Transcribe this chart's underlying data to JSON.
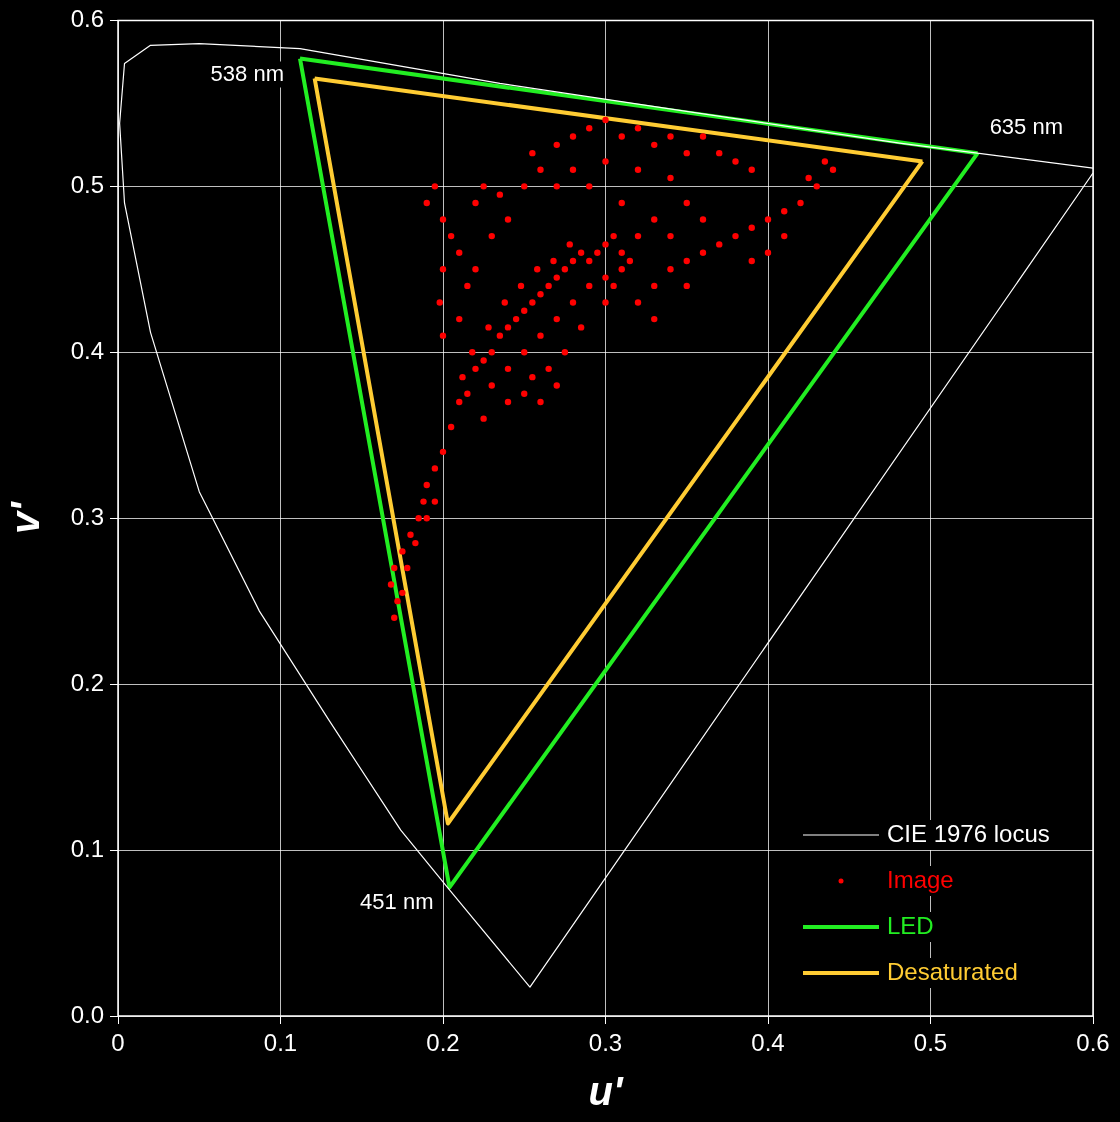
{
  "chart_data": {
    "type": "scatter",
    "xlabel": "u'",
    "ylabel": "v'",
    "xlim": [
      0,
      0.6
    ],
    "ylim": [
      0,
      0.6
    ],
    "xticks": [
      0,
      0.1,
      0.2,
      0.3,
      0.4,
      0.5,
      0.6
    ],
    "yticks": [
      {
        "value": 0,
        "label": "0.0"
      },
      0.1,
      0.2,
      0.3,
      0.4,
      0.5,
      0.6
    ],
    "grid": true,
    "legend": "bottom right",
    "series": [
      {
        "name": "CIE 1976 locus",
        "type": "line",
        "color": "#ffffff",
        "marker": "none",
        "x": [
          0.6,
          0.2535,
          0.204,
          0.174,
          0.13,
          0.087,
          0.05,
          0.02,
          0.004,
          0.001,
          0.004,
          0.02,
          0.05,
          0.112,
          0.235,
          0.358,
          0.481,
          0.6
        ],
        "values": [
          0.508,
          0.0174,
          0.076,
          0.112,
          0.178,
          0.244,
          0.316,
          0.412,
          0.49,
          0.538,
          0.574,
          0.585,
          0.586,
          0.583,
          0.562,
          0.544,
          0.526,
          0.511
        ]
      },
      {
        "name": "Image",
        "color": "#ff0000",
        "marker": "circle",
        "x": [
          0.205,
          0.21,
          0.215,
          0.212,
          0.22,
          0.225,
          0.218,
          0.23,
          0.235,
          0.228,
          0.24,
          0.245,
          0.238,
          0.25,
          0.255,
          0.248,
          0.26,
          0.265,
          0.258,
          0.27,
          0.275,
          0.268,
          0.28,
          0.285,
          0.278,
          0.29,
          0.295,
          0.3,
          0.305,
          0.31,
          0.3,
          0.29,
          0.28,
          0.27,
          0.26,
          0.25,
          0.24,
          0.23,
          0.285,
          0.275,
          0.265,
          0.255,
          0.305,
          0.31,
          0.315,
          0.3,
          0.2,
          0.195,
          0.19,
          0.188,
          0.185,
          0.18,
          0.175,
          0.17,
          0.168,
          0.172,
          0.17,
          0.175,
          0.178,
          0.183,
          0.19,
          0.195,
          0.19,
          0.195,
          0.2,
          0.205,
          0.2,
          0.198,
          0.2,
          0.21,
          0.215,
          0.21,
          0.22,
          0.225,
          0.235,
          0.24,
          0.23,
          0.22,
          0.25,
          0.255,
          0.26,
          0.27,
          0.28,
          0.29,
          0.3,
          0.31,
          0.32,
          0.33,
          0.34,
          0.35,
          0.36,
          0.37,
          0.38,
          0.39,
          0.28,
          0.3,
          0.32,
          0.34,
          0.27,
          0.29,
          0.38,
          0.39,
          0.4,
          0.41,
          0.42,
          0.43,
          0.44,
          0.435,
          0.425,
          0.41,
          0.4,
          0.39,
          0.32,
          0.33,
          0.34,
          0.35,
          0.36,
          0.37,
          0.33,
          0.35,
          0.32,
          0.33,
          0.35,
          0.36,
          0.31,
          0.34,
          0.225,
          0.24,
          0.25,
          0.26,
          0.27
        ],
        "values": [
          0.355,
          0.37,
          0.375,
          0.385,
          0.39,
          0.395,
          0.4,
          0.4,
          0.41,
          0.415,
          0.415,
          0.42,
          0.43,
          0.425,
          0.43,
          0.44,
          0.435,
          0.44,
          0.45,
          0.445,
          0.45,
          0.455,
          0.455,
          0.46,
          0.465,
          0.455,
          0.46,
          0.465,
          0.47,
          0.46,
          0.445,
          0.44,
          0.43,
          0.42,
          0.41,
          0.4,
          0.39,
          0.38,
          0.415,
          0.4,
          0.39,
          0.385,
          0.44,
          0.45,
          0.455,
          0.43,
          0.34,
          0.33,
          0.32,
          0.31,
          0.3,
          0.29,
          0.28,
          0.27,
          0.26,
          0.25,
          0.24,
          0.255,
          0.27,
          0.285,
          0.3,
          0.31,
          0.49,
          0.5,
          0.48,
          0.47,
          0.45,
          0.43,
          0.41,
          0.42,
          0.44,
          0.46,
          0.49,
          0.5,
          0.495,
          0.48,
          0.47,
          0.45,
          0.5,
          0.52,
          0.51,
          0.525,
          0.53,
          0.535,
          0.54,
          0.53,
          0.535,
          0.525,
          0.53,
          0.52,
          0.53,
          0.52,
          0.515,
          0.51,
          0.51,
          0.515,
          0.51,
          0.505,
          0.5,
          0.5,
          0.47,
          0.475,
          0.48,
          0.485,
          0.49,
          0.5,
          0.51,
          0.515,
          0.505,
          0.47,
          0.46,
          0.455,
          0.43,
          0.44,
          0.45,
          0.455,
          0.46,
          0.465,
          0.42,
          0.44,
          0.47,
          0.48,
          0.49,
          0.48,
          0.49,
          0.47,
          0.36,
          0.37,
          0.375,
          0.37,
          0.38
        ]
      },
      {
        "name": "LED",
        "type": "line",
        "color": "#22ee22",
        "marker": "none",
        "x": [
          0.112,
          0.204,
          0.529
        ],
        "values": [
          0.577,
          0.0775,
          0.52
        ]
      },
      {
        "type": "line",
        "color": "#22ee22",
        "marker": "none",
        "x": [
          0.112,
          0.529
        ],
        "values": [
          0.577,
          0.52
        ]
      },
      {
        "name": "Desaturated",
        "type": "line",
        "color": "#ffcc33",
        "marker": "none",
        "x": [
          0.121,
          0.203,
          0.495
        ],
        "values": [
          0.565,
          0.116,
          0.515
        ]
      },
      {
        "type": "line",
        "color": "#ffcc33",
        "marker": "none",
        "x": [
          0.121,
          0.495
        ],
        "values": [
          0.565,
          0.515
        ]
      }
    ],
    "annotations": [
      {
        "text": "538 nm",
        "x": 0.112,
        "y": 0.577
      },
      {
        "text": "635 nm",
        "x": 0.529,
        "y": 0.52
      },
      {
        "text": "451 nm",
        "x": 0.204,
        "y": 0.0775
      }
    ]
  }
}
